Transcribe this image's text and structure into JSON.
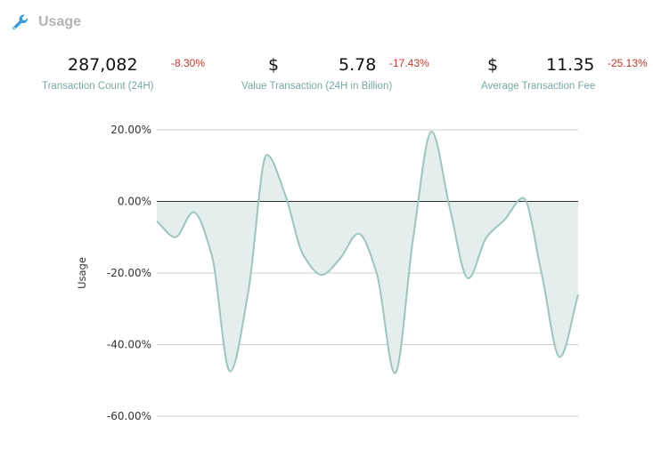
{
  "header": {
    "title": "Usage",
    "icon": "wrench-icon",
    "icon_color": "#3a9ad9"
  },
  "stats": [
    {
      "prefix": "",
      "value": "287,082",
      "change": "-8.30%",
      "label": "Transaction Count (24H)"
    },
    {
      "prefix": "$",
      "value": "5.78",
      "change": "-17.43%",
      "label": "Value Transaction (24H in Billion)"
    },
    {
      "prefix": "$",
      "value": "11.35",
      "change": "-25.13%",
      "label": "Average Transaction Fee"
    }
  ],
  "colors": {
    "negative": "#c0392b",
    "label": "#78a8a4",
    "line": "#9ec4be",
    "fill": "#e3eeed"
  },
  "chart_data": {
    "type": "area",
    "ylabel": "Usage",
    "ylim": [
      -60,
      20
    ],
    "yticks": [
      "20.00%",
      "0.00%",
      "-20.00%",
      "-40.00%",
      "-60.00%"
    ],
    "ytick_values": [
      20,
      0,
      -20,
      -40,
      -60
    ],
    "grid": true,
    "values": [
      -5.5,
      -10,
      -3,
      -15,
      -47.5,
      -25,
      13,
      2,
      -15,
      -20.5,
      -16,
      -9,
      -20,
      -48,
      -10,
      19.5,
      -2,
      -21.5,
      -10,
      -5,
      1,
      -20,
      -43.5,
      -26
    ]
  }
}
